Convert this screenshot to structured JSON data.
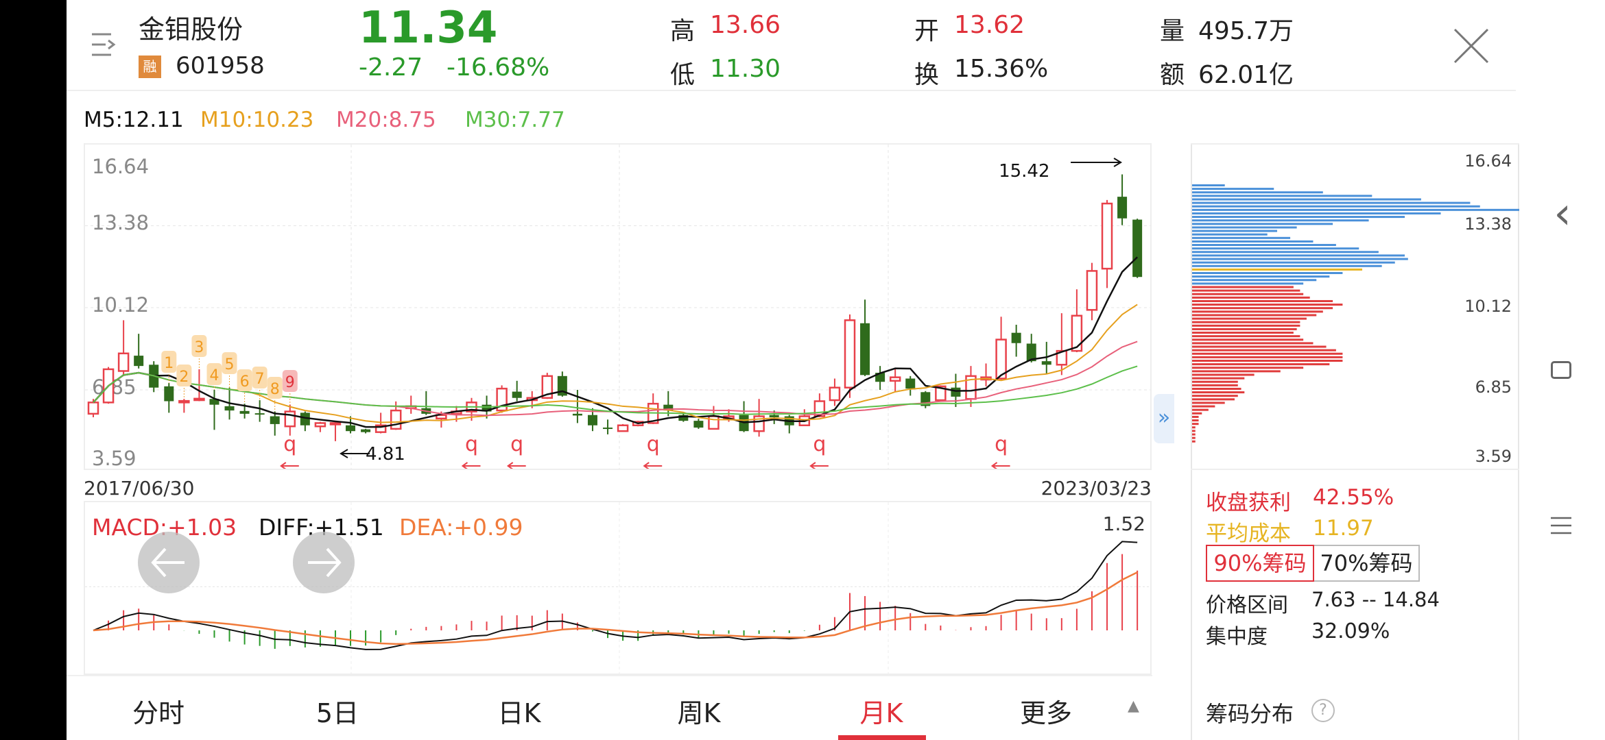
{
  "header": {
    "stock_name": "金钼股份",
    "margin_badge": "融",
    "stock_code": "601958",
    "price": "11.34",
    "change": "-2.27",
    "change_pct": "-16.68%",
    "high_label": "高",
    "high": "13.66",
    "low_label": "低",
    "low": "11.30",
    "open_label": "开",
    "open": "13.62",
    "turnover_label": "换",
    "turnover": "15.36%",
    "volume_label": "量",
    "volume": "495.7万",
    "amount_label": "额",
    "amount": "62.01亿"
  },
  "ma_legend": {
    "m5": "M5:12.11",
    "m10": "M10:10.23",
    "m20": "M20:8.75",
    "m30": "M30:7.77"
  },
  "colors": {
    "up": "#e8414a",
    "down": "#2f6b1c",
    "ma5": "#111111",
    "ma10": "#e6a01e",
    "ma20": "#e8607a",
    "ma30": "#5cbf4a",
    "chip_above": "#4a90d9",
    "chip_below": "#e03c3c",
    "chip_avg": "#e6b422",
    "accent": "#e0303a"
  },
  "chart_data": {
    "type": "candlestick",
    "period": "月K",
    "y_ticks": [
      "16.64",
      "13.38",
      "10.12",
      "6.85",
      "3.59"
    ],
    "x_start": "2017/06/30",
    "x_end": "2023/03/23",
    "ohlc": [
      [
        5.9,
        6.49,
        5.76,
        6.35
      ],
      [
        6.35,
        7.76,
        6.3,
        7.67
      ],
      [
        7.6,
        9.62,
        7.4,
        8.3
      ],
      [
        8.21,
        9.08,
        7.7,
        7.8
      ],
      [
        7.85,
        7.99,
        6.76,
        6.94
      ],
      [
        6.99,
        7.12,
        5.94,
        6.4
      ],
      [
        6.35,
        6.49,
        5.94,
        6.41
      ],
      [
        6.44,
        7.67,
        6.4,
        6.5
      ],
      [
        6.49,
        6.85,
        5.26,
        6.26
      ],
      [
        6.2,
        6.94,
        5.67,
        6.03
      ],
      [
        6.01,
        6.3,
        5.71,
        5.9
      ],
      [
        5.92,
        6.44,
        5.58,
        5.87
      ],
      [
        5.8,
        5.99,
        5.03,
        5.49
      ],
      [
        5.4,
        6.26,
        5.03,
        5.99
      ],
      [
        5.94,
        5.99,
        5.21,
        5.44
      ],
      [
        5.4,
        5.58,
        5.17,
        5.53
      ],
      [
        5.49,
        5.62,
        4.81,
        5.53
      ],
      [
        5.44,
        5.8,
        5.12,
        5.21
      ],
      [
        5.28,
        5.3,
        5.12,
        5.17
      ],
      [
        5.17,
        5.94,
        5.12,
        5.44
      ],
      [
        5.3,
        6.39,
        5.26,
        6.03
      ],
      [
        6.12,
        6.62,
        5.9,
        6.2
      ],
      [
        6.12,
        6.8,
        5.85,
        5.9
      ],
      [
        5.71,
        5.99,
        5.35,
        5.85
      ],
      [
        5.9,
        6.21,
        5.58,
        5.99
      ],
      [
        5.99,
        6.53,
        5.62,
        6.35
      ],
      [
        6.26,
        6.62,
        5.71,
        5.99
      ],
      [
        6.03,
        7.03,
        5.94,
        6.9
      ],
      [
        6.78,
        7.21,
        6.4,
        6.53
      ],
      [
        6.44,
        6.8,
        6.12,
        6.53
      ],
      [
        6.53,
        7.53,
        6.49,
        7.4
      ],
      [
        7.4,
        7.58,
        6.58,
        6.62
      ],
      [
        5.9,
        6.85,
        5.53,
        5.83
      ],
      [
        5.85,
        6.12,
        5.21,
        5.44
      ],
      [
        5.35,
        5.67,
        5.08,
        5.3
      ],
      [
        5.21,
        5.49,
        5.19,
        5.44
      ],
      [
        5.44,
        5.62,
        5.4,
        5.58
      ],
      [
        5.53,
        6.71,
        5.49,
        6.3
      ],
      [
        6.26,
        6.8,
        5.8,
        6.03
      ],
      [
        5.85,
        5.94,
        5.58,
        5.62
      ],
      [
        5.62,
        5.7,
        5.3,
        5.35
      ],
      [
        5.3,
        6.21,
        5.28,
        5.8
      ],
      [
        5.71,
        6.08,
        5.58,
        5.8
      ],
      [
        5.85,
        6.4,
        5.17,
        5.21
      ],
      [
        5.21,
        6.49,
        4.99,
        5.8
      ],
      [
        5.85,
        6.03,
        5.49,
        5.76
      ],
      [
        5.8,
        5.85,
        5.12,
        5.44
      ],
      [
        5.44,
        6.08,
        5.44,
        5.8
      ],
      [
        5.8,
        6.71,
        5.76,
        6.4
      ],
      [
        6.44,
        7.3,
        6.21,
        6.94
      ],
      [
        6.94,
        9.85,
        6.53,
        9.62
      ],
      [
        9.5,
        10.44,
        7.4,
        7.44
      ],
      [
        7.53,
        7.8,
        6.85,
        7.17
      ],
      [
        7.21,
        7.67,
        6.76,
        7.35
      ],
      [
        7.3,
        7.4,
        6.62,
        6.9
      ],
      [
        6.76,
        6.8,
        6.12,
        6.21
      ],
      [
        6.44,
        7.03,
        6.4,
        6.99
      ],
      [
        6.94,
        7.49,
        6.17,
        6.58
      ],
      [
        6.49,
        7.8,
        6.17,
        7.4
      ],
      [
        7.26,
        7.9,
        6.99,
        7.35
      ],
      [
        7.3,
        9.76,
        7.26,
        8.85
      ],
      [
        9.12,
        9.44,
        8.17,
        8.71
      ],
      [
        8.69,
        9.08,
        7.94,
        7.99
      ],
      [
        7.99,
        8.76,
        7.49,
        7.85
      ],
      [
        7.85,
        9.9,
        7.44,
        8.4
      ],
      [
        8.4,
        10.85,
        8.35,
        9.8
      ],
      [
        10.03,
        11.9,
        9.62,
        11.58
      ],
      [
        11.67,
        14.4,
        10.9,
        14.26
      ],
      [
        14.53,
        15.42,
        13.4,
        13.67
      ],
      [
        13.62,
        13.66,
        11.3,
        11.34
      ]
    ],
    "high_annotation": "15.42",
    "low_annotation": "4.81",
    "nine_turn": {
      "labels": [
        "1",
        "2",
        "3",
        "4",
        "5",
        "6",
        "7",
        "8",
        "9"
      ],
      "start_index": 5
    },
    "signal_marker": {
      "label": "q",
      "indexes": [
        13,
        25,
        28,
        37,
        48,
        60
      ]
    },
    "macd": {
      "macd_label": "MACD:+1.03",
      "diff_label": "DIFF:+1.51",
      "dea_label": "DEA:+0.99",
      "max_label": "1.52"
    }
  },
  "chips": {
    "y_ticks": [
      "16.64",
      "13.38",
      "10.12",
      "6.85",
      "3.59"
    ],
    "above": [
      0.1,
      0.25,
      0.4,
      0.55,
      0.7,
      0.85,
      0.88,
      1.0,
      0.76,
      0.65,
      0.54,
      0.43,
      0.32,
      0.26,
      0.23,
      0.3,
      0.37,
      0.44,
      0.51,
      0.57,
      0.65,
      0.66,
      0.62,
      0.58,
      0.52,
      0.46,
      0.42,
      0.38,
      0.34
    ],
    "avg_index": 24,
    "below": [
      0.31,
      0.33,
      0.34,
      0.36,
      0.43,
      0.46,
      0.43,
      0.4,
      0.38,
      0.35,
      0.33,
      0.33,
      0.32,
      0.31,
      0.33,
      0.34,
      0.37,
      0.41,
      0.44,
      0.46,
      0.46,
      0.46,
      0.42,
      0.34,
      0.27,
      0.19,
      0.16,
      0.14,
      0.14,
      0.15,
      0.16,
      0.14,
      0.13,
      0.1,
      0.07,
      0.05,
      0.03,
      0.02,
      0.02,
      0.02,
      0.01,
      0.01,
      0.01,
      0.01,
      0.01
    ],
    "profit_label": "收盘获利",
    "profit": "42.55%",
    "avg_cost_label": "平均成本",
    "avg_cost": "11.97",
    "btn90": "90%筹码",
    "btn70": "70%筹码",
    "range_label": "价格区间",
    "range": "7.63 -- 14.84",
    "concentration_label": "集中度",
    "concentration": "32.09%",
    "title": "筹码分布",
    "help": "?"
  },
  "tabs": [
    {
      "label": "分时"
    },
    {
      "label": "5日"
    },
    {
      "label": "日K"
    },
    {
      "label": "周K"
    },
    {
      "label": "月K",
      "active": true
    },
    {
      "label": "更多"
    }
  ],
  "icons": {
    "menu": "menu-arrow-icon",
    "close": "close-icon",
    "expand": "»",
    "collapse": "▲",
    "back": "‹"
  }
}
